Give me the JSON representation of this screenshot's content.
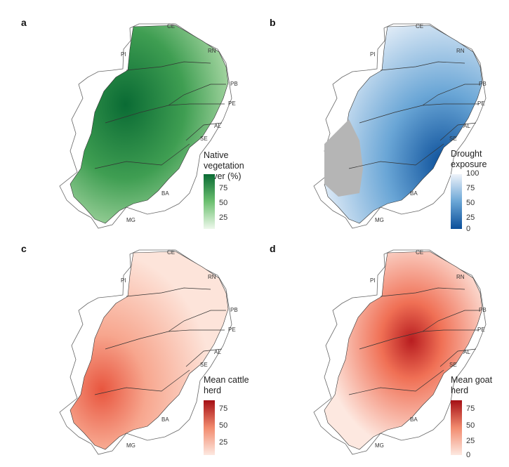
{
  "panels": [
    {
      "id": "a",
      "label": "a",
      "legend_title": "Native vegetation\ncover (%)",
      "ticks": [
        "75",
        "50",
        "25"
      ],
      "colors": {
        "low": "#eef8ec",
        "mid": "#6cc070",
        "high": "#0a6b34"
      },
      "states": [
        "CE",
        "PI",
        "RN",
        "PB",
        "PE",
        "AL",
        "SE",
        "BA",
        "MG"
      ]
    },
    {
      "id": "b",
      "label": "b",
      "legend_title": "Drought\nexposure",
      "ticks": [
        "100",
        "75",
        "50",
        "25",
        "0"
      ],
      "colors": {
        "low": "#eef3fa",
        "mid": "#6aa6d6",
        "high": "#0b4f9a",
        "missing": "#b5b5b5"
      },
      "states": [
        "CE",
        "PI",
        "RN",
        "PB",
        "PE",
        "AL",
        "SE",
        "BA",
        "MG"
      ]
    },
    {
      "id": "c",
      "label": "c",
      "legend_title": "Mean cattle\nherd",
      "ticks": [
        "75",
        "50",
        "25"
      ],
      "colors": {
        "low": "#fde8e0",
        "mid": "#f28b6e",
        "high": "#a50f15"
      },
      "states": [
        "CE",
        "PI",
        "RN",
        "PB",
        "PE",
        "AL",
        "SE",
        "BA",
        "MG"
      ]
    },
    {
      "id": "d",
      "label": "d",
      "legend_title": "Mean goat\nherd",
      "ticks": [
        "75",
        "50",
        "25",
        "0"
      ],
      "colors": {
        "low": "#fde8e0",
        "mid": "#f28b6e",
        "high": "#a50f15"
      },
      "states": [
        "CE",
        "PI",
        "RN",
        "PB",
        "PE",
        "AL",
        "SE",
        "BA",
        "MG"
      ]
    }
  ]
}
